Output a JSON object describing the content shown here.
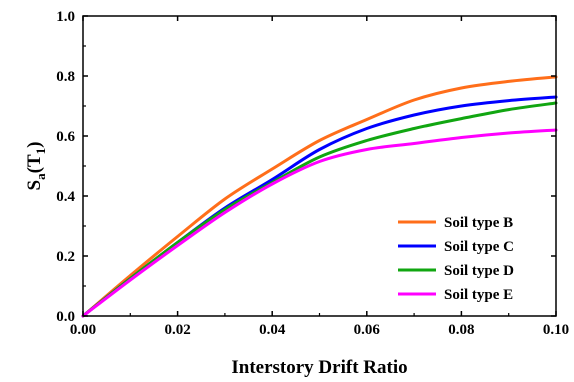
{
  "chart_data": {
    "type": "line",
    "title": "",
    "xlabel": "Interstory Drift Ratio",
    "ylabel": {
      "main": "S",
      "sub": "a",
      "paren_open": "(T",
      "paren_sub": "1",
      "paren_close": ")"
    },
    "xlim": [
      0.0,
      0.1
    ],
    "ylim": [
      0.0,
      1.0
    ],
    "x_ticks": [
      0.0,
      0.02,
      0.04,
      0.06,
      0.08,
      0.1
    ],
    "x_tick_labels": [
      "0.00",
      "0.02",
      "0.04",
      "0.06",
      "0.08",
      "0.10"
    ],
    "y_ticks": [
      0.0,
      0.2,
      0.4,
      0.6,
      0.8,
      1.0
    ],
    "y_tick_labels": [
      "0.0",
      "0.2",
      "0.4",
      "0.6",
      "0.8",
      "1.0"
    ],
    "grid": false,
    "legend_position": "lower-right",
    "series": [
      {
        "name": "Soil type B",
        "color": "#FF6E1A",
        "x": [
          0.0,
          0.01,
          0.02,
          0.03,
          0.04,
          0.05,
          0.06,
          0.07,
          0.08,
          0.09,
          0.1
        ],
        "y": [
          0.0,
          0.135,
          0.265,
          0.39,
          0.49,
          0.585,
          0.655,
          0.72,
          0.76,
          0.782,
          0.797
        ]
      },
      {
        "name": "Soil type C",
        "color": "#0000FF",
        "x": [
          0.0,
          0.01,
          0.02,
          0.03,
          0.04,
          0.05,
          0.06,
          0.07,
          0.08,
          0.09,
          0.1
        ],
        "y": [
          0.0,
          0.125,
          0.245,
          0.36,
          0.455,
          0.555,
          0.625,
          0.67,
          0.7,
          0.718,
          0.73
        ]
      },
      {
        "name": "Soil type D",
        "color": "#11A611",
        "x": [
          0.0,
          0.01,
          0.02,
          0.03,
          0.04,
          0.05,
          0.06,
          0.07,
          0.08,
          0.09,
          0.1
        ],
        "y": [
          0.0,
          0.125,
          0.245,
          0.355,
          0.445,
          0.53,
          0.585,
          0.625,
          0.658,
          0.688,
          0.71
        ]
      },
      {
        "name": "Soil type E",
        "color": "#FF00FF",
        "x": [
          0.0,
          0.01,
          0.02,
          0.03,
          0.04,
          0.05,
          0.06,
          0.07,
          0.08,
          0.09,
          0.1
        ],
        "y": [
          0.0,
          0.12,
          0.235,
          0.345,
          0.44,
          0.515,
          0.555,
          0.575,
          0.595,
          0.61,
          0.62
        ]
      }
    ]
  }
}
